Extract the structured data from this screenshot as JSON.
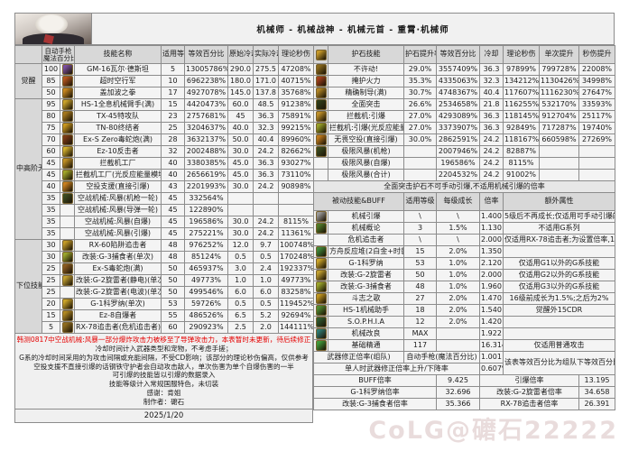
{
  "title": "机械师 - 机械战神 - 机械元首 - 重霄·机械师",
  "watermark": "CoLG@礳石22222",
  "left_table": {
    "corner_header": [
      "自动手枪",
      "魔法百分比"
    ],
    "headers": [
      "技能名称",
      "适用等级",
      "等效百分比",
      "原始冷却",
      "实际冷却",
      "理论秒伤"
    ],
    "groups": [
      {
        "label": "觉醒",
        "rows": [
          [
            "100",
            "GM-16瓦尔·德斯坦",
            "5",
            "13005786%",
            "290.0",
            "275.5",
            "47208%",
            "#7b4fa0"
          ],
          [
            "85",
            "超时空行军",
            "10",
            "6962238%",
            "180.0",
            "171.0",
            "40715%",
            "#b5541e"
          ],
          [
            "50",
            "盖加波之拳",
            "17",
            "4927078%",
            "145.0",
            "137.8",
            "35768%",
            "#c8861e"
          ]
        ]
      },
      {
        "label": "中高阶无色",
        "rows": [
          [
            "95",
            "HS-1全息机械臂手(满)",
            "15",
            "4420473%",
            "60.0",
            "48.5",
            "91238%",
            "#c9a22a"
          ],
          [
            "80",
            "TX-45特攻队",
            "23",
            "2757681%",
            "45",
            "36.3",
            "75891%",
            "#a4761c"
          ],
          [
            "75",
            "TN-80终结者",
            "25",
            "3204637%",
            "40.0",
            "32.3",
            "99215%",
            "#c8961c"
          ],
          [
            "70",
            "Ex-S Zero毒蛇炮(满)",
            "28",
            "3632137%",
            "50.0",
            "40.4",
            "89960%",
            "#7c3a16"
          ],
          [
            "60",
            "Ez-10反击者",
            "32",
            "2002488%",
            "30.0",
            "24.2",
            "82662%",
            "#d2b02e"
          ],
          [
            "45",
            "拦截机工厂",
            "40",
            "3380385%",
            "45.0",
            "36.3",
            "93027%",
            "#bf8f24"
          ],
          [
            "45",
            "拦截机工厂(光反应能量模块)",
            "40",
            "2656619%",
            "45.0",
            "36.3",
            "73110%",
            "#a0a428"
          ],
          [
            "40",
            "空投支援(直接引爆)",
            "43",
            "2201993%",
            "30.0",
            "24.2",
            "90898%",
            "#c97f1e"
          ],
          [
            "35",
            "空战机械:风暴(机枪一轮)",
            "45",
            "332564%",
            "",
            "",
            "",
            "#3c4a20"
          ],
          [
            "35",
            "空战机械:风暴(导弹一轮)",
            "45",
            "122890%",
            "",
            "",
            "",
            ""
          ],
          [
            "35",
            "空战机械:风暴(自爆)",
            "45",
            "196586%",
            "30.0",
            "24.2",
            "8115%",
            ""
          ],
          [
            "35",
            "空战机械:风暴(引爆)",
            "45",
            "275221%",
            "30.0",
            "24.2",
            "11361%",
            ""
          ]
        ]
      },
      {
        "label": "下位技能",
        "rows": [
          [
            "30",
            "RX-60陷阱追击者",
            "48",
            "976252%",
            "12.0",
            "9.7",
            "100748%",
            "#c39a26"
          ],
          [
            "30",
            "改装:G-3捕食者(单次)",
            "48",
            "85124%",
            "0.5",
            "0.5",
            "170248%",
            "#9aa62c"
          ],
          [
            "25",
            "Ex-S毒蛇炮(满)",
            "50",
            "465937%",
            "3.0",
            "2.4",
            "192337%",
            "#8a5a20"
          ],
          [
            "25",
            "改装:G-2旋雷者(静电)(单次)",
            "50",
            "49773%",
            "1.0",
            "1.0",
            "49773%",
            "#c2a030"
          ],
          [
            "25",
            "改装:G-2旋雷者(电波)(单次)",
            "50",
            "499546%",
            "6.0",
            "6.0",
            "83258%",
            ""
          ],
          [
            "20",
            "G-1科罗纳(单次)",
            "53",
            "59726%",
            "0.5",
            "0.5",
            "119452%",
            "#caa428"
          ],
          [
            "15",
            "Ez-8自爆者",
            "55",
            "486526%",
            "6.5",
            "5.2",
            "92694%",
            "#b08820"
          ],
          [
            "5",
            "RX-78追击者(危机追击者)",
            "60",
            "290923%",
            "2.5",
            "2.0",
            "144111%",
            "#8f6c1e"
          ]
        ]
      }
    ]
  },
  "right_table": {
    "headers": [
      "护石技能",
      "护石提升率",
      "等效百分比",
      "冷却",
      "理论秒伤",
      "单次提升",
      "秒伤提升"
    ],
    "rows": [
      [
        "不许动!",
        "29.0%",
        "3557409%",
        "36.3",
        "97899%",
        "799728%",
        "22008%",
        "#8a6a1c"
      ],
      [
        "掩护火力",
        "35.3%",
        "4335063%",
        "32.3",
        "134212%",
        "1130426%",
        "34998%",
        "#a4401c"
      ],
      [
        "精确制导(满)",
        "30.7%",
        "4748367%",
        "40.4",
        "117607%",
        "1116230%",
        "27647%",
        "#b08424"
      ],
      [
        "全面突击",
        "26.6%",
        "2534658%",
        "21.8",
        "116255%",
        "532170%",
        "33593%",
        "#2e3c18"
      ],
      [
        "拦截机:引爆",
        "27.0%",
        "4293089%",
        "36.3",
        "118145%",
        "912704%",
        "25117%",
        "#c09028"
      ],
      [
        "拦截机:引爆(光反应能量模块)",
        "27.0%",
        "3373907%",
        "36.3",
        "92849%",
        "717287%",
        "19740%",
        "#96a028"
      ],
      [
        "无畏空投(直接引爆)",
        "30.0%",
        "2862591%",
        "24.2",
        "118167%",
        "660598%",
        "27269%",
        "#c07a1c"
      ],
      [
        "极限风暴(机枪)",
        "",
        "2007946%",
        "24.2",
        "82887%",
        "",
        "",
        "#39491f"
      ],
      [
        "极限风暴(自爆)",
        "",
        "196586%",
        "24.2",
        "8115%",
        "",
        "",
        ""
      ],
      [
        "极限风暴(合计)",
        "",
        "2204532%",
        "24.2",
        "91002%",
        "",
        "",
        ""
      ]
    ],
    "note": "全面突击护石不可手动引爆,不适用机械引爆的倍率",
    "passive_headers": [
      "被动技能&BUFF",
      "适用等级",
      "每级成长",
      "倍率",
      "额外属性"
    ],
    "passives": [
      [
        "机械引爆",
        "\\",
        "\\",
        "1.400",
        "5级后不再成长;仅适用可手动引爆的技能",
        "#9a9a9a"
      ],
      [
        "机械概论",
        "3",
        "1.5%",
        "1.130",
        "不适用G系列",
        "#4f7a28"
      ],
      [
        "危机追击者",
        "\\",
        "\\",
        "2.000",
        "仅适用RX-78追击者;为设置倍率,10级满",
        ""
      ],
      [
        "方舟反应堆(2白金+时装)",
        "15",
        "2.0%",
        "1.350",
        "",
        "#3f8a3a"
      ],
      [
        "G-1科罗纳",
        "53",
        "1.0%",
        "2.120",
        "仅适用G1以外的G系技能",
        "#caa428"
      ],
      [
        "改装:G-2旋雷者",
        "50",
        "1.0%",
        "2.000",
        "仅适用G2以外的G系技能",
        "#c2a030"
      ],
      [
        "改装:G-3捕食者",
        "48",
        "1.0%",
        "1.960",
        "仅适用G3以外的G系技能",
        "#9aa62c"
      ],
      [
        "斗志之歌",
        "27",
        "2.0%",
        "1.470",
        "16级前成长为1.5%;之后为2%",
        "#c0961e"
      ],
      [
        "HS-1机械助手",
        "18",
        "2.0%",
        "1.540",
        "觉醒外15CDR",
        "#4f8a30"
      ],
      [
        "S.O.P.H.I.A",
        "12",
        "2.0%",
        "1.420",
        "",
        "#2f5a30"
      ],
      [
        "机械改良",
        "MAX",
        "",
        "1.922",
        "",
        "#2e7a72"
      ],
      [
        "基础精通",
        "117",
        "",
        "16.314",
        "仅适用普通攻击",
        "#3f9a3a"
      ]
    ],
    "weapon": {
      "row1_label": "武器修正倍率(组队)",
      "row1_type": "自动手枪(魔法百分比)",
      "row1_value": "1.001",
      "side_note": "该表等效百分比为组队下等效百分比",
      "row2_label": "单人时武器修正倍率上升/下降率",
      "row2_value": "0.607%"
    },
    "multipliers": [
      [
        "BUFF倍率",
        "9.425",
        "引爆倍率",
        "13.195"
      ],
      [
        "G-1科罗纳倍率",
        "32.696",
        "改装:G-2旋雷者倍率",
        "34.658"
      ],
      [
        "改装:G-3捕食者倍率",
        "35.366",
        "RX-78追击者倍率",
        "26.391"
      ]
    ]
  },
  "footer": {
    "warning": "韩测0817中空战机械:风暴一部分爆炸攻击力被移至了导弹攻击力，本表暂时未更新，待后续修正",
    "notes": [
      "冷却时间计入武器类型和宠物，不考虑手搓；",
      "G系的冷却时间采用的为攻击间隔或充能间隔，不受CD影响；该部分的理论秒伤偏高，仅供参考",
      "空投支援不直接引爆的话钢铁守护者会自动攻击敌人，单次伤害为单个自爆伤害的一半",
      "可引爆的技能皆以引爆的数据录入",
      "技能等级计入常规国服特色，未切装",
      "感谢：肯姐",
      "制作者：礳石"
    ],
    "date": "2025/1/20"
  }
}
